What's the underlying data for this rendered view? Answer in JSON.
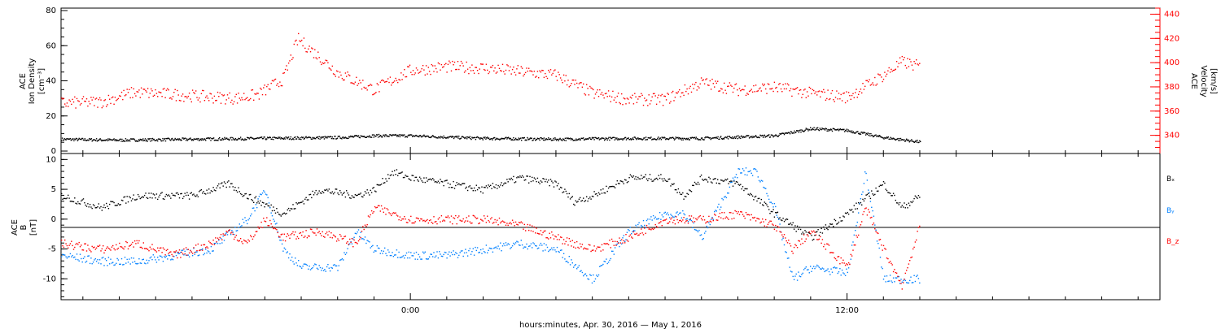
{
  "x_caption": "hours:minutes, Apr. 30, 2016 — May  1, 2016",
  "colors": {
    "black": "#000000",
    "red": "#ff0000",
    "blue": "#0080ff"
  },
  "chart_data": [
    {
      "type": "scatter",
      "title": "",
      "ylabel_left": [
        "ACE",
        "Ion Density",
        "[cm⁻³]"
      ],
      "ylabel_right": [
        "ACE",
        "Velocity",
        "[km/s]"
      ],
      "ylim_left": [
        0,
        80
      ],
      "ylim_right": [
        325,
        445
      ],
      "yticks_left": [
        "0",
        "20",
        "40",
        "60",
        "80"
      ],
      "yticks_right": [
        "340",
        "360",
        "380",
        "400",
        "420",
        "440"
      ],
      "xlim_hours": [
        -9.6,
        20.6
      ],
      "series": [
        {
          "axis": "left",
          "color": "#000000",
          "x": [
            -9.6,
            -8,
            -6,
            -4,
            -2,
            -1,
            0,
            2,
            4,
            6,
            8,
            10,
            11,
            12,
            13,
            14
          ],
          "y": [
            7,
            6.5,
            7,
            7.5,
            8,
            9,
            9,
            7.5,
            7,
            7.5,
            7.5,
            9,
            13,
            12,
            8,
            5.5
          ]
        },
        {
          "axis": "right",
          "color": "#ff0000",
          "x": [
            -9.6,
            -8.5,
            -7.6,
            -6.5,
            -5.5,
            -4.8,
            -4.2,
            -3.5,
            -3.1,
            -2,
            -1,
            0,
            1,
            2,
            3,
            4,
            5,
            6,
            7,
            8,
            9,
            10,
            11,
            12,
            13,
            13.5,
            14
          ],
          "y": [
            367,
            368,
            376,
            374,
            372,
            371,
            374,
            387,
            420,
            392,
            378,
            394,
            397,
            396,
            393,
            390,
            375,
            370,
            370,
            384,
            378,
            380,
            375,
            372,
            390,
            401,
            397
          ]
        }
      ]
    },
    {
      "type": "scatter",
      "title": "",
      "ylabel_left": [
        "ACE",
        "B",
        "[nT]"
      ],
      "ylim": [
        -13.5,
        11
      ],
      "yticks": [
        "-10",
        "-5",
        "0",
        "5",
        "10"
      ],
      "legend_position": "right",
      "xticks": [
        "0:00",
        "12:00"
      ],
      "xtick_hours": [
        0,
        12
      ],
      "xlim_hours": [
        -9.6,
        20.6
      ],
      "series": [
        {
          "name": "Bx",
          "color": "#000000",
          "x": [
            -9.6,
            -8.5,
            -7.5,
            -6,
            -5,
            -4.5,
            -3.5,
            -2.5,
            -1.5,
            -1,
            -0.5,
            0,
            1,
            2,
            3,
            4,
            4.5,
            5,
            6,
            7,
            7.5,
            8,
            9,
            10,
            10.5,
            11,
            12,
            13,
            13.5,
            14
          ],
          "y": [
            4,
            2,
            4,
            4,
            6,
            4,
            1,
            5,
            4,
            5,
            8,
            7,
            6,
            5,
            7,
            6,
            3,
            4,
            7,
            7,
            4,
            7,
            6,
            1,
            -1,
            -3,
            1,
            6,
            2,
            4
          ]
        },
        {
          "name": "By",
          "color": "#0080ff",
          "x": [
            -9.6,
            -8.5,
            -7.5,
            -6.5,
            -5.5,
            -4.5,
            -4,
            -3.5,
            -3,
            -2,
            -1.5,
            -1,
            0,
            1,
            2,
            3,
            4,
            5,
            6,
            7,
            7.5,
            8,
            9,
            9.5,
            10,
            10.5,
            11,
            12,
            12.5,
            13,
            14
          ],
          "y": [
            -6,
            -7,
            -7,
            -6,
            -5,
            0,
            5,
            -5,
            -8,
            -8,
            -2,
            -5,
            -6,
            -6,
            -5,
            -4,
            -5,
            -10,
            -2,
            1,
            1,
            -3,
            8,
            8,
            2,
            -10,
            -8,
            -9,
            8,
            -10,
            -10
          ]
        },
        {
          "name": "Bz",
          "color": "#ff0000",
          "x": [
            -9.6,
            -8.5,
            -7.5,
            -6.5,
            -5.5,
            -5,
            -4.5,
            -4,
            -3.5,
            -2.5,
            -1.5,
            -1,
            -0.5,
            0,
            1,
            2,
            3,
            4,
            5,
            6,
            7,
            8,
            9,
            10,
            10.5,
            11,
            12,
            12.5,
            13,
            13.5,
            14
          ],
          "y": [
            -4,
            -5,
            -4,
            -6,
            -4,
            -2,
            -4,
            0,
            -3,
            -2,
            -4,
            2,
            1,
            0,
            0,
            0,
            -1,
            -3,
            -5,
            -3,
            0,
            0,
            1,
            -1,
            -5,
            -2,
            -8,
            2,
            -5,
            -11,
            -1
          ]
        }
      ],
      "legend": [
        "Bₓ",
        "Bᵧ",
        "B_z"
      ]
    }
  ]
}
